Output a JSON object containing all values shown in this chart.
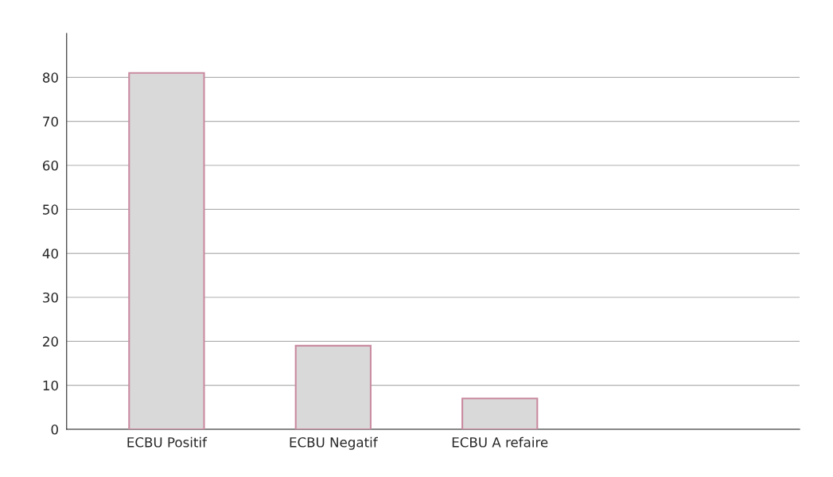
{
  "chart_data": {
    "type": "bar",
    "categories": [
      "ECBU Positif",
      "ECBU Negatif",
      "ECBU A refaire"
    ],
    "values": [
      81,
      19,
      7
    ],
    "color": "#d9d9d9",
    "ylim": [
      0,
      90
    ],
    "yticks": [
      0,
      10,
      20,
      30,
      40,
      50,
      60,
      70,
      80
    ],
    "grid": "y",
    "legend": false
  }
}
